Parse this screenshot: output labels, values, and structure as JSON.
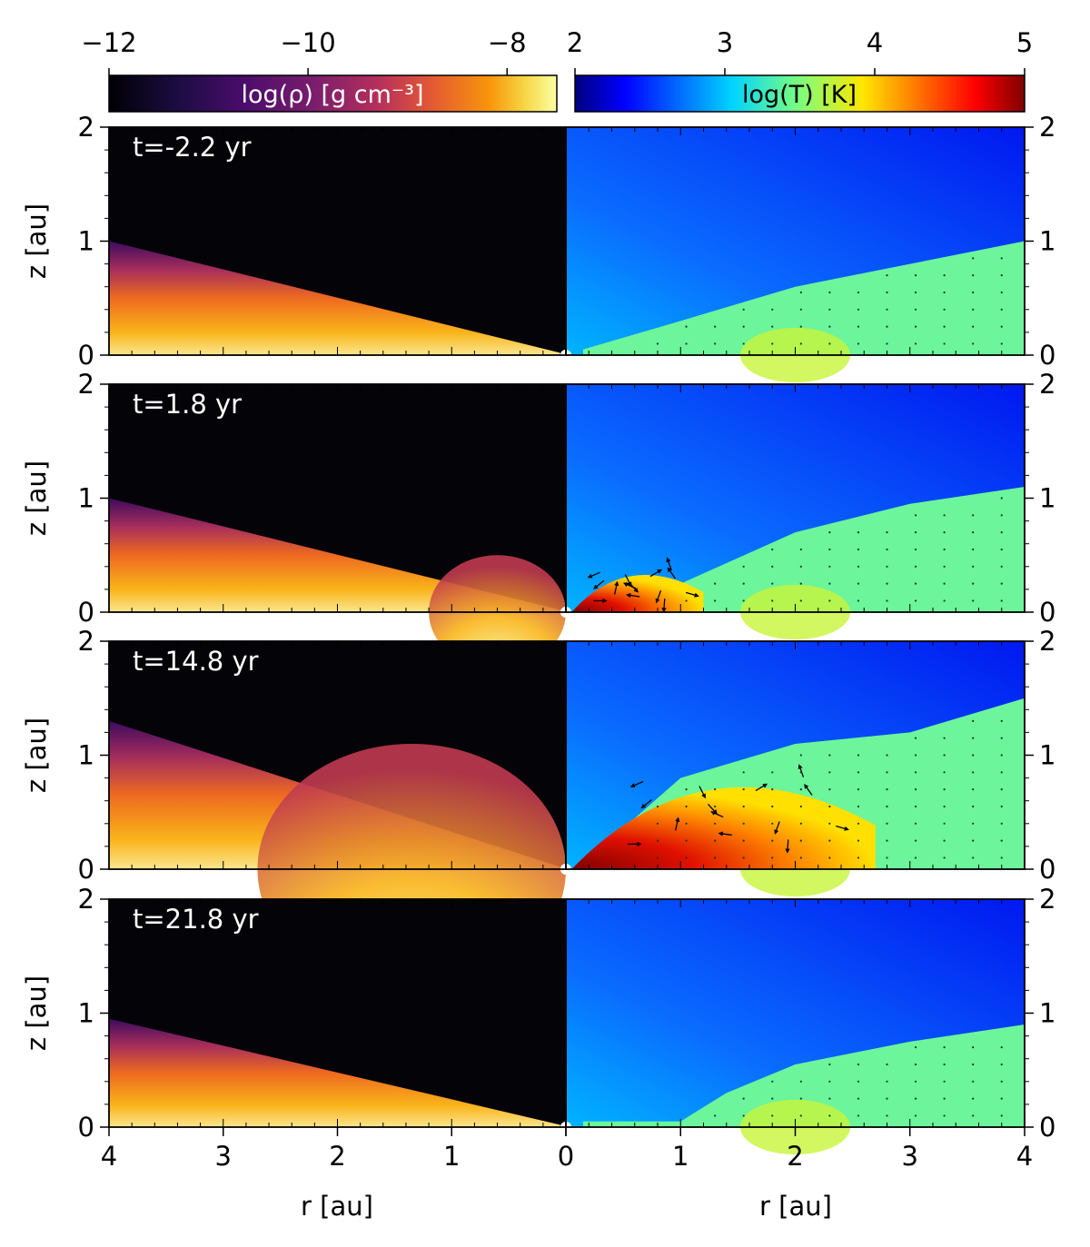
{
  "chart_data": {
    "type": "heatmap",
    "title": "",
    "colorbars": [
      {
        "label": "log(ρ) [g cm⁻³]",
        "colormap": "inferno",
        "range": [
          -12,
          -7.5
        ],
        "ticks": [
          -12,
          -10,
          -8
        ],
        "tick_labels": [
          "−12",
          "−10",
          "−8"
        ]
      },
      {
        "label": "log(T) [K]",
        "colormap": "jet",
        "range": [
          2,
          5
        ],
        "ticks": [
          2,
          3,
          4,
          5
        ],
        "tick_labels": [
          "2",
          "3",
          "4",
          "5"
        ]
      }
    ],
    "xlabel": "r [au]",
    "ylabel": "z [au]",
    "x_left_ticks": [
      "4",
      "3",
      "2",
      "1",
      "0"
    ],
    "x_right_ticks": [
      "0",
      "1",
      "2",
      "3",
      "4"
    ],
    "xlim": [
      0,
      4
    ],
    "ylim": [
      0,
      2
    ],
    "y_ticks": [
      "0",
      "1",
      "2"
    ],
    "panels": [
      {
        "time_label": "t=-2.2 yr",
        "disk_surface_z_at_r4": 1.0,
        "temperature_surface": [
          [
            0.15,
            0.05
          ],
          [
            1,
            0.3
          ],
          [
            2,
            0.6
          ],
          [
            3,
            0.8
          ],
          [
            4,
            1.0
          ]
        ],
        "hot_bubble": null
      },
      {
        "time_label": "t=1.8 yr",
        "disk_surface_z_at_r4": 1.0,
        "temperature_surface": [
          [
            0.15,
            0.05
          ],
          [
            1,
            0.25
          ],
          [
            2,
            0.7
          ],
          [
            3,
            0.95
          ],
          [
            4,
            1.1
          ]
        ],
        "hot_bubble": {
          "r_extent": [
            0,
            1.2
          ],
          "z_max": 0.5
        }
      },
      {
        "time_label": "t=14.8 yr",
        "disk_surface_z_at_r4": 1.3,
        "temperature_surface": [
          [
            0.15,
            0.05
          ],
          [
            1,
            0.8
          ],
          [
            2,
            1.1
          ],
          [
            3,
            1.2
          ],
          [
            4,
            1.5
          ]
        ],
        "hot_bubble": {
          "r_extent": [
            0,
            2.7
          ],
          "z_max": 1.1
        }
      },
      {
        "time_label": "t=21.8 yr",
        "disk_surface_z_at_r4": 0.95,
        "temperature_surface": [
          [
            0.15,
            0.05
          ],
          [
            1,
            0.05
          ],
          [
            1.4,
            0.3
          ],
          [
            2,
            0.55
          ],
          [
            3,
            0.75
          ],
          [
            4,
            0.9
          ]
        ],
        "hot_bubble": null
      }
    ]
  }
}
